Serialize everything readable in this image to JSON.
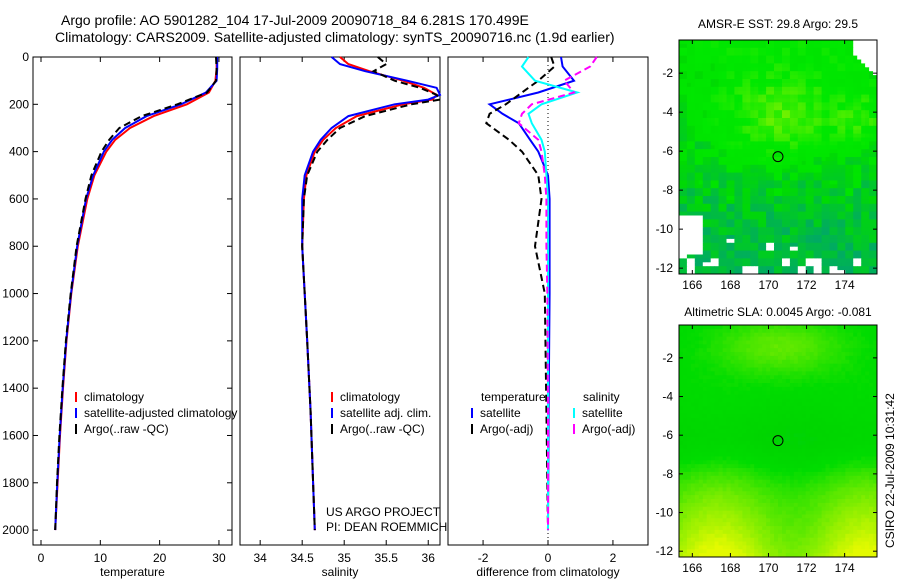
{
  "title": {
    "line1": "Argo profile: AO 5901282_104 17-Jul-2009 20090718_84 6.281S 170.499E",
    "line2": "Climatology: CARS2009. Satellite-adjusted climatology: synTS_20090716.nc (1.9d earlier)"
  },
  "credit": {
    "project": "US ARGO PROJECT",
    "pi": "PI: DEAN ROEMMICH",
    "stamp": "CSIRO 22-Jul-2009 10:31:42"
  },
  "colors": {
    "climatology": "#ff0000",
    "satellite": "#0000ff",
    "argo": "#000000",
    "sal_satellite": "#00ffff",
    "sal_argo": "#ff00ff"
  },
  "chart_data": [
    {
      "type": "line",
      "xlabel": "temperature",
      "ylabel": "",
      "xlim": [
        -1.35,
        32.2
      ],
      "ylim": [
        2063,
        0
      ],
      "xticks": [
        0,
        10,
        20,
        30
      ],
      "yticks": [
        0,
        200,
        400,
        600,
        800,
        1000,
        1200,
        1400,
        1600,
        1800,
        2000
      ],
      "depth": [
        0,
        50,
        100,
        150,
        200,
        250,
        300,
        350,
        400,
        500,
        600,
        800,
        1000,
        1200,
        1400,
        1600,
        1800,
        2000
      ],
      "legend": [
        "climatology",
        "satellite-adjusted climatology",
        "Argo(..raw -QC)"
      ],
      "series": [
        {
          "name": "climatology",
          "color": "#ff0000",
          "dash": false,
          "values": [
            29.6,
            29.6,
            29.4,
            28.3,
            24.6,
            19,
            15,
            12.5,
            11,
            9,
            7.8,
            6.2,
            5.1,
            4.3,
            3.7,
            3.2,
            2.8,
            2.4
          ]
        },
        {
          "name": "satellite-adjusted climatology",
          "color": "#0000ff",
          "dash": false,
          "values": [
            29.7,
            29.7,
            29.6,
            27.8,
            23.6,
            17.8,
            14.2,
            12,
            10.6,
            8.8,
            7.6,
            6.1,
            5.05,
            4.25,
            3.65,
            3.15,
            2.75,
            2.4
          ]
        },
        {
          "name": "Argo(..raw -QC)",
          "color": "#000000",
          "dash": true,
          "values": [
            29.5,
            29.6,
            29.5,
            28,
            23,
            17,
            13.2,
            11.5,
            10.2,
            8.5,
            7.5,
            6,
            5,
            4.2,
            3.6,
            3.1,
            2.7,
            2.4
          ]
        }
      ]
    },
    {
      "type": "line",
      "xlabel": "salinity",
      "xlim": [
        33.76,
        36.14
      ],
      "ylim": [
        2063,
        0
      ],
      "xticks": [
        34,
        34.5,
        35,
        35.5,
        36
      ],
      "yticks": [],
      "depth": [
        0,
        30,
        60,
        100,
        130,
        160,
        180,
        200,
        250,
        300,
        350,
        400,
        500,
        600,
        800,
        1000,
        1200,
        1500,
        1800,
        2000
      ],
      "legend": [
        "climatology",
        "satellite adj. clim.",
        "Argo(..raw -QC)"
      ],
      "series": [
        {
          "name": "climatology",
          "color": "#ff0000",
          "dash": false,
          "values": [
            34.95,
            35.05,
            35.3,
            35.7,
            35.95,
            36.1,
            36.05,
            35.7,
            35.15,
            34.9,
            34.75,
            34.65,
            34.55,
            34.52,
            34.5,
            34.53,
            34.56,
            34.6,
            34.63,
            34.65
          ]
        },
        {
          "name": "satellite adj. clim.",
          "color": "#0000ff",
          "dash": false,
          "values": [
            34.85,
            34.95,
            35.25,
            35.75,
            36.1,
            36.14,
            36.0,
            35.6,
            35.05,
            34.85,
            34.72,
            34.63,
            34.53,
            34.5,
            34.5,
            34.53,
            34.56,
            34.6,
            34.63,
            34.65
          ]
        },
        {
          "name": "Argo(..raw -QC)",
          "color": "#000000",
          "dash": true,
          "values": [
            35.4,
            35.5,
            35.35,
            35.6,
            35.9,
            36.1,
            36.14,
            35.8,
            35.25,
            34.95,
            34.8,
            34.68,
            34.56,
            34.52,
            34.5,
            34.53,
            34.56,
            34.6,
            34.63,
            34.65
          ]
        }
      ]
    },
    {
      "type": "line",
      "xlabel": "difference from climatology",
      "xlim": [
        -3.08,
        3.08
      ],
      "ylim": [
        2063,
        0
      ],
      "xticks": [
        -2,
        0,
        2
      ],
      "yticks": [],
      "depth": [
        0,
        40,
        100,
        150,
        200,
        240,
        280,
        350,
        400,
        500,
        600,
        800,
        1000,
        1500,
        2000
      ],
      "legend_headers": [
        "temperature",
        "salinity"
      ],
      "legend": [
        "satellite",
        "Argo(-adj)",
        "satellite",
        "Argo(-adj)"
      ],
      "series": [
        {
          "name": "temperature satellite",
          "color": "#0000ff",
          "dash": false,
          "values": [
            0.4,
            0.45,
            0.8,
            -0.3,
            -1.8,
            -1.4,
            -0.9,
            -0.55,
            -0.3,
            0.0,
            0.05,
            0.05,
            0.05,
            0.02,
            0.0
          ]
        },
        {
          "name": "temperature Argo(-adj)",
          "color": "#000000",
          "dash": true,
          "values": [
            0.1,
            0.2,
            -0.3,
            -0.8,
            -1.3,
            -1.8,
            -1.9,
            -1.2,
            -0.8,
            -0.3,
            -0.2,
            -0.4,
            -0.1,
            -0.05,
            0.0
          ]
        },
        {
          "name": "salinity satellite",
          "color": "#00ffff",
          "dash": false,
          "values": [
            -0.6,
            -0.8,
            -0.4,
            0.9,
            -0.2,
            -0.6,
            -0.5,
            -0.2,
            -0.1,
            -0.05,
            0.0,
            0.0,
            0.0,
            0.0,
            0.0
          ]
        },
        {
          "name": "salinity Argo(-adj)",
          "color": "#ff00ff",
          "dash": true,
          "values": [
            1.5,
            1.3,
            0.5,
            0.8,
            -0.5,
            -0.8,
            -0.9,
            -0.3,
            -0.2,
            -0.1,
            -0.05,
            -0.05,
            -0.02,
            0.0,
            0.0
          ]
        }
      ]
    },
    {
      "type": "heatmap",
      "title": "AMSR-E SST: 29.8 Argo: 29.5",
      "xlim": [
        165.3,
        175.7
      ],
      "ylim": [
        -12.3,
        -0.3
      ],
      "xticks": [
        166,
        168,
        170,
        172,
        174
      ],
      "yticks": [
        -2,
        -4,
        -6,
        -8,
        -10,
        -12
      ],
      "marker": {
        "lon": 170.499,
        "lat": -6.281
      }
    },
    {
      "type": "heatmap",
      "title": "Altimetric SLA: 0.0045 Argo: -0.081",
      "xlim": [
        165.3,
        175.7
      ],
      "ylim": [
        -12.3,
        -0.3
      ],
      "xticks": [
        166,
        168,
        170,
        172,
        174
      ],
      "yticks": [
        -2,
        -4,
        -6,
        -8,
        -10,
        -12
      ],
      "marker": {
        "lon": 170.499,
        "lat": -6.281
      }
    }
  ]
}
